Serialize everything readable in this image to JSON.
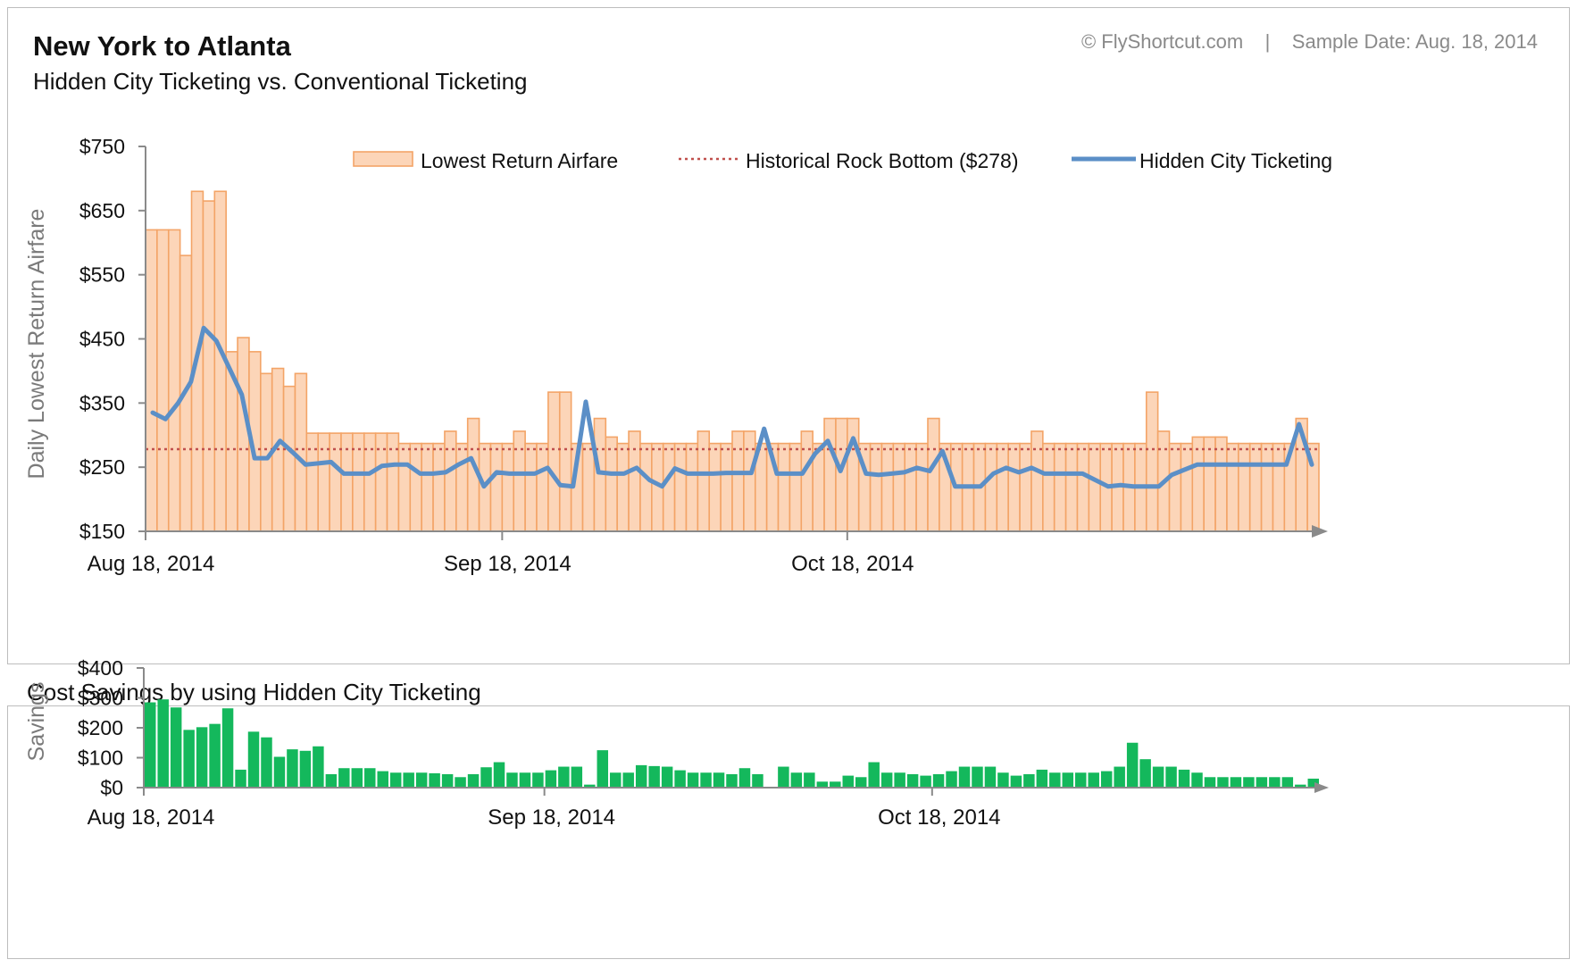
{
  "header": {
    "title": "New York to Atlanta",
    "subtitle": "Hidden City Ticketing vs. Conventional Ticketing",
    "credit": "© FlyShortcut.com    |    Sample Date: Aug. 18, 2014"
  },
  "colors": {
    "bar_fill": "#fcd5b8",
    "bar_stroke": "#f3a467",
    "line": "#5b8fc7",
    "rock_bottom": "#c0504d",
    "savings": "#14b85c",
    "axis": "#8a8a8a"
  },
  "chart_data": [
    {
      "type": "bar+line",
      "title": "New York to Atlanta",
      "subtitle": "Hidden City Ticketing vs. Conventional Ticketing",
      "ylabel": "Daily Lowest Return Airfare",
      "ylim": [
        150,
        750
      ],
      "yticks": [
        "$150",
        "$250",
        "$350",
        "$450",
        "$550",
        "$650",
        "$750"
      ],
      "ytick_values": [
        150,
        250,
        350,
        450,
        550,
        650,
        750
      ],
      "x_start": "2014-08-18",
      "xticks": [
        {
          "label": "Aug 18, 2014",
          "date": "2014-08-18"
        },
        {
          "label": "Sep 18, 2014",
          "date": "2014-09-18"
        },
        {
          "label": "Oct 18, 2014",
          "date": "2014-10-18"
        }
      ],
      "legend_position": "top",
      "legend": [
        {
          "key": "airfare",
          "label": "Lowest Return Airfare"
        },
        {
          "key": "rock",
          "label": "Historical Rock Bottom ($278)"
        },
        {
          "key": "hidden",
          "label": "Hidden City Ticketing"
        }
      ],
      "rock_bottom": 278,
      "series": [
        {
          "name": "Lowest Return Airfare",
          "type": "bar",
          "values": [
            620,
            620,
            620,
            580,
            680,
            665,
            680,
            430,
            452,
            430,
            396,
            404,
            376,
            396,
            303,
            303,
            303,
            303,
            303,
            303,
            303,
            303,
            287,
            287,
            287,
            287,
            306,
            287,
            326,
            287,
            287,
            287,
            306,
            287,
            287,
            367,
            367,
            287,
            287,
            326,
            297,
            287,
            306,
            287,
            287,
            287,
            287,
            287,
            306,
            287,
            287,
            306,
            306,
            287,
            287,
            287,
            287,
            306,
            287,
            326,
            326,
            326,
            287,
            287,
            287,
            287,
            287,
            287,
            326,
            287,
            287,
            287,
            287,
            287,
            287,
            287,
            287,
            306,
            287,
            287,
            287,
            287,
            287,
            287,
            287,
            287,
            287,
            367,
            306,
            287,
            287,
            297,
            297,
            297,
            287,
            287,
            287,
            287,
            287,
            287,
            326,
            287
          ]
        },
        {
          "name": "Hidden City Ticketing",
          "type": "line",
          "values": [
            335,
            325,
            350,
            383,
            467,
            447,
            405,
            363,
            264,
            264,
            291,
            273,
            254,
            256,
            258,
            240,
            240,
            240,
            252,
            254,
            254,
            240,
            240,
            242,
            254,
            264,
            220,
            242,
            240,
            240,
            240,
            249,
            222,
            220,
            352,
            242,
            240,
            240,
            249,
            230,
            220,
            248,
            240,
            240,
            240,
            241,
            241,
            241,
            310,
            240,
            240,
            240,
            271,
            291,
            244,
            295,
            240,
            238,
            240,
            242,
            249,
            244,
            275,
            220,
            220,
            220,
            240,
            249,
            242,
            249,
            240,
            240,
            240,
            240,
            230,
            220,
            222,
            220,
            220,
            220,
            238,
            246,
            254,
            254,
            254,
            254,
            254,
            254,
            254,
            254,
            317,
            254
          ]
        }
      ]
    },
    {
      "type": "bar",
      "title": "Cost Savings by using Hidden City Ticketing",
      "ylabel": "Savings",
      "ylim": [
        0,
        400
      ],
      "yticks": [
        "$0",
        "$100",
        "$200",
        "$300",
        "$400"
      ],
      "ytick_values": [
        0,
        100,
        200,
        300,
        400
      ],
      "xticks": [
        {
          "label": "Aug 18, 2014",
          "date": "2014-08-18"
        },
        {
          "label": "Sep 18, 2014",
          "date": "2014-09-18"
        },
        {
          "label": "Oct 18, 2014",
          "date": "2014-10-18"
        }
      ],
      "series": [
        {
          "name": "Savings",
          "values": [
            285,
            295,
            268,
            193,
            202,
            213,
            265,
            60,
            187,
            168,
            103,
            128,
            123,
            138,
            45,
            65,
            65,
            65,
            55,
            50,
            50,
            50,
            48,
            45,
            35,
            45,
            68,
            85,
            50,
            50,
            50,
            58,
            70,
            70,
            10,
            125,
            50,
            50,
            75,
            72,
            70,
            58,
            50,
            50,
            50,
            45,
            65,
            45,
            0,
            70,
            50,
            50,
            20,
            20,
            40,
            35,
            85,
            50,
            50,
            45,
            40,
            45,
            55,
            70,
            70,
            70,
            50,
            40,
            45,
            60,
            50,
            50,
            50,
            50,
            55,
            70,
            150,
            95,
            70,
            70,
            60,
            50,
            35,
            35,
            35,
            35,
            35,
            35,
            35,
            10,
            30
          ]
        }
      ]
    }
  ]
}
